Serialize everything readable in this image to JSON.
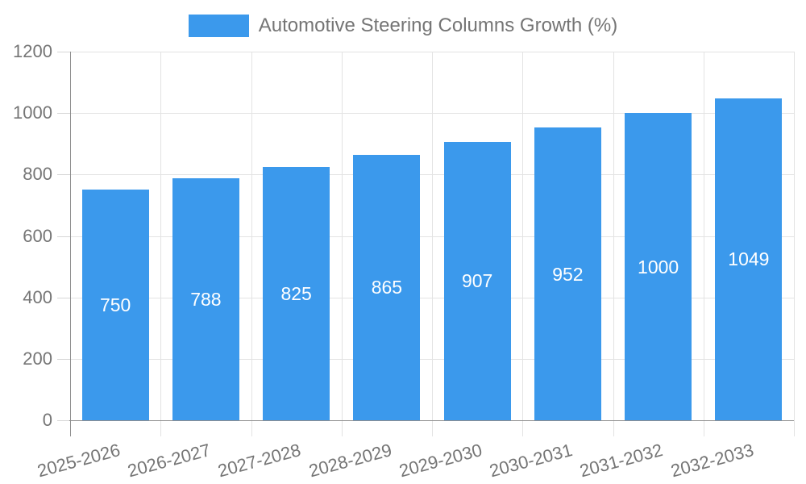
{
  "chart_data": {
    "type": "bar",
    "title": "",
    "categories": [
      "2025-2026",
      "2026-2027",
      "2027-2028",
      "2028-2029",
      "2029-2030",
      "2030-2031",
      "2031-2032",
      "2032-2033"
    ],
    "series": [
      {
        "name": "Automotive Steering Columns Growth (%)",
        "values": [
          750,
          788,
          825,
          865,
          907,
          952,
          1000,
          1049
        ]
      }
    ],
    "xlabel": "",
    "ylabel": "",
    "ylim": [
      0,
      1200
    ],
    "yticks": [
      0,
      200,
      400,
      600,
      800,
      1000,
      1200
    ],
    "grid": true,
    "legend_position": "top-center",
    "value_labels_position": "inside-middle",
    "xtick_rotation_deg": -15
  },
  "colors": {
    "bar": "#3b99ec",
    "axis_text": "#757575",
    "value_text": "#ffffff",
    "axis_line": "#8e8e8e",
    "gridline": "#e3e3e3",
    "background": "#ffffff"
  }
}
